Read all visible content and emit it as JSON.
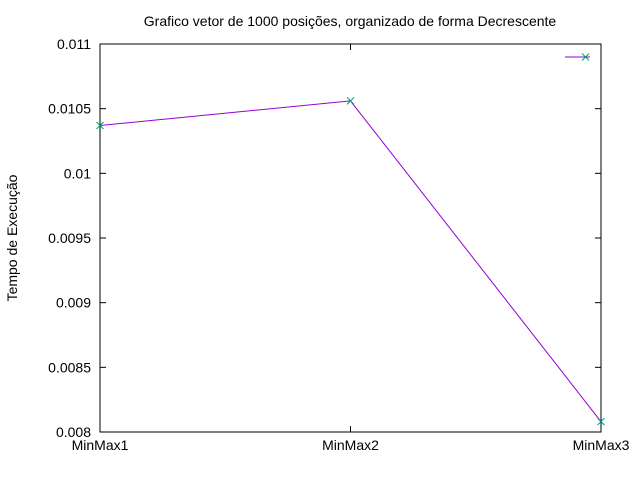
{
  "chart_data": {
    "type": "line",
    "title": "Grafico vetor de 1000 posições, organizado de forma Decrescente",
    "xlabel": "",
    "ylabel": "Tempo de Execução",
    "categories": [
      "MinMax1",
      "MinMax2",
      "MinMax3"
    ],
    "series": [
      {
        "name": "",
        "values": [
          0.01037,
          0.01056,
          0.00808
        ],
        "color": "#9400d3",
        "marker_color": "#009e73",
        "marker": "x"
      }
    ],
    "ylim": [
      0.008,
      0.011
    ],
    "yticks": [
      0.008,
      0.0085,
      0.009,
      0.0095,
      0.01,
      0.0105,
      0.011
    ],
    "ytick_labels": [
      "0.008",
      "0.0085",
      "0.009",
      "0.0095",
      "0.01",
      "0.0105",
      "0.011"
    ],
    "legend_position": "top-right",
    "grid": false
  }
}
